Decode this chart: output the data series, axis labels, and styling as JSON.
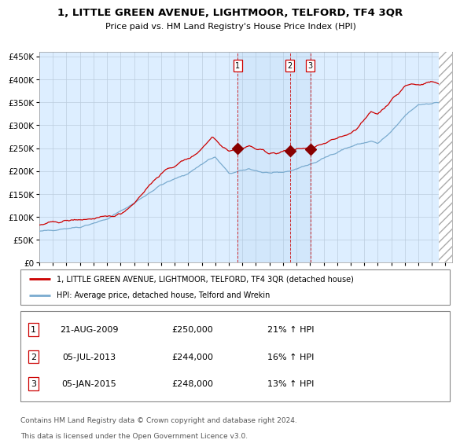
{
  "title": "1, LITTLE GREEN AVENUE, LIGHTMOOR, TELFORD, TF4 3QR",
  "subtitle": "Price paid vs. HM Land Registry's House Price Index (HPI)",
  "legend_line1": "1, LITTLE GREEN AVENUE, LIGHTMOOR, TELFORD, TF4 3QR (detached house)",
  "legend_line2": "HPI: Average price, detached house, Telford and Wrekin",
  "footer1": "Contains HM Land Registry data © Crown copyright and database right 2024.",
  "footer2": "This data is licensed under the Open Government Licence v3.0.",
  "transactions": [
    {
      "num": 1,
      "date": "21-AUG-2009",
      "price": 250000,
      "hpi_pct": "21% ↑ HPI",
      "date_val": 2009.64
    },
    {
      "num": 2,
      "date": "05-JUL-2013",
      "price": 244000,
      "hpi_pct": "16% ↑ HPI",
      "date_val": 2013.51
    },
    {
      "num": 3,
      "date": "05-JAN-2015",
      "price": 248000,
      "hpi_pct": "13% ↑ HPI",
      "date_val": 2015.01
    }
  ],
  "hpi_color": "#7aabcf",
  "price_color": "#cc0000",
  "bg_color": "#ddeeff",
  "grid_color": "#bbccdd",
  "ylim": [
    0,
    460000
  ],
  "xlim_start": 1995.0,
  "xlim_end": 2025.5,
  "yticks": [
    0,
    50000,
    100000,
    150000,
    200000,
    250000,
    300000,
    350000,
    400000,
    450000
  ],
  "xticks": [
    1995,
    1996,
    1997,
    1998,
    1999,
    2000,
    2001,
    2002,
    2003,
    2004,
    2005,
    2006,
    2007,
    2008,
    2009,
    2010,
    2011,
    2012,
    2013,
    2014,
    2015,
    2016,
    2017,
    2018,
    2019,
    2020,
    2021,
    2022,
    2023,
    2024,
    2025
  ],
  "hpi_anchors_t": [
    1995.0,
    1997.0,
    1998.0,
    2000.0,
    2002.0,
    2004.0,
    2006.0,
    2007.5,
    2008.0,
    2009.0,
    2009.5,
    2010.5,
    2011.5,
    2012.5,
    2013.5,
    2014.5,
    2015.5,
    2016.5,
    2017.5,
    2018.5,
    2019.5,
    2020.0,
    2021.0,
    2022.0,
    2023.0,
    2024.0,
    2025.0
  ],
  "hpi_anchors_v": [
    68000,
    75000,
    78000,
    95000,
    130000,
    170000,
    195000,
    225000,
    230000,
    195000,
    197000,
    205000,
    197000,
    195000,
    200000,
    210000,
    220000,
    235000,
    248000,
    258000,
    265000,
    260000,
    285000,
    320000,
    345000,
    348000,
    350000
  ],
  "price_anchors_t": [
    1995.0,
    1996.0,
    1997.5,
    1999.0,
    2000.0,
    2001.0,
    2002.0,
    2003.0,
    2004.0,
    2005.5,
    2006.5,
    2007.0,
    2007.8,
    2008.5,
    2009.0,
    2009.5,
    2010.0,
    2010.5,
    2011.0,
    2011.5,
    2012.0,
    2012.5,
    2013.0,
    2013.5,
    2014.0,
    2014.5,
    2015.0,
    2015.5,
    2016.0,
    2016.5,
    2017.0,
    2017.5,
    2018.0,
    2018.5,
    2019.0,
    2019.5,
    2020.0,
    2020.5,
    2021.0,
    2021.5,
    2022.0,
    2022.5,
    2023.0,
    2023.5,
    2024.0,
    2024.5,
    2025.0
  ],
  "price_anchors_v": [
    82000,
    88000,
    93000,
    96000,
    100000,
    106000,
    130000,
    165000,
    195000,
    220000,
    235000,
    250000,
    275000,
    255000,
    245000,
    248000,
    250000,
    255000,
    248000,
    245000,
    240000,
    238000,
    243000,
    242000,
    248000,
    250000,
    248000,
    255000,
    258000,
    265000,
    272000,
    278000,
    283000,
    295000,
    310000,
    330000,
    325000,
    338000,
    355000,
    368000,
    385000,
    390000,
    388000,
    392000,
    395000,
    390000,
    395000
  ]
}
